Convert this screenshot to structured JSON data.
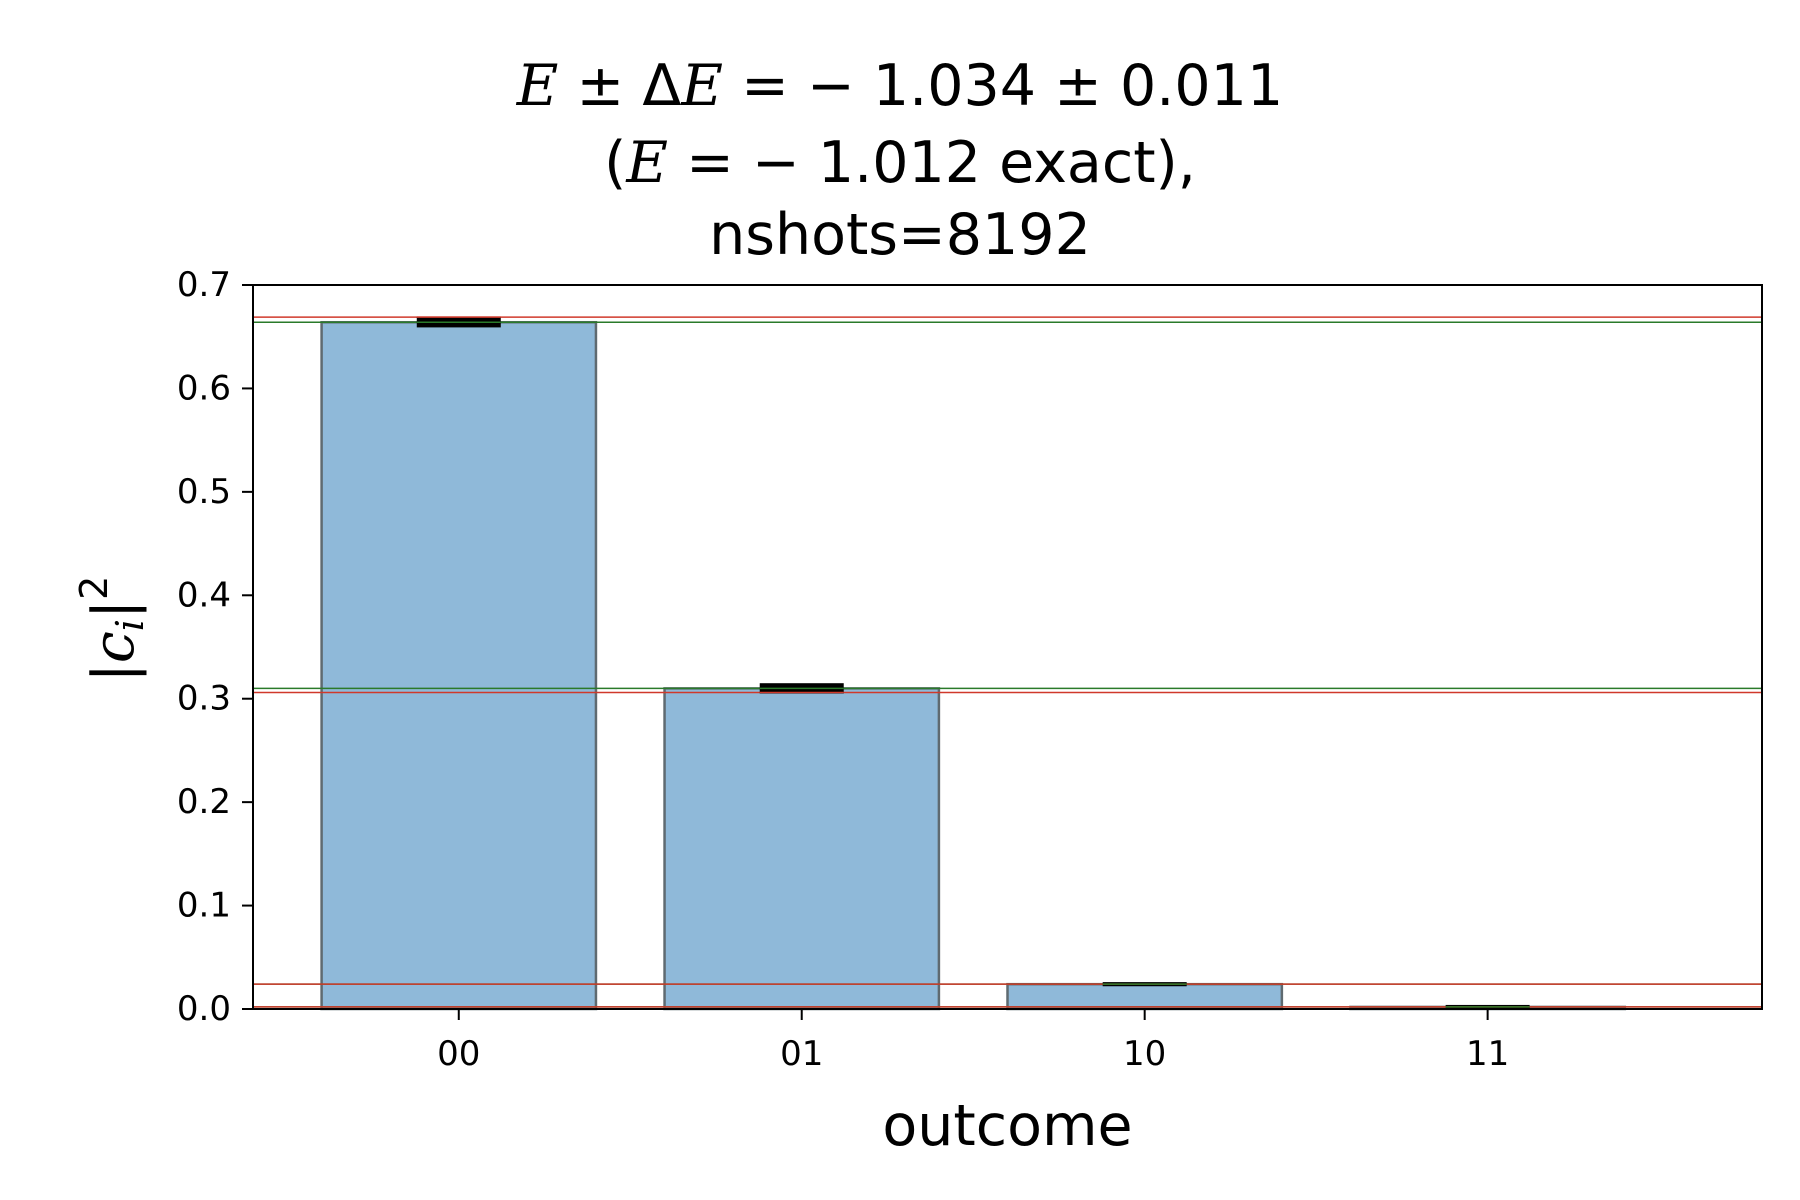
{
  "chart_data": {
    "type": "bar",
    "title_lines": [
      {
        "pre": "",
        "var": "E",
        "mid": " ± Δ",
        "var2": "E",
        "post": " = − 1.034 ± 0.011"
      },
      {
        "pre": "(",
        "var": "E",
        "post": " = − 1.012 exact),"
      },
      {
        "pre": "nshots=8192"
      }
    ],
    "xlabel": "outcome",
    "ylabel": {
      "pre": "|",
      "var": "c",
      "sub": "i",
      "post": "|",
      "sup": "2"
    },
    "categories": [
      "00",
      "01",
      "10",
      "11"
    ],
    "values": [
      0.664,
      0.31,
      0.024,
      0.002
    ],
    "errors": [
      0.005,
      0.005,
      0.002,
      0.0005
    ],
    "exact_values": [
      0.669,
      0.306,
      0.024,
      0.002
    ],
    "ylim": [
      0,
      0.7
    ],
    "yticks": [
      "0.0",
      "0.1",
      "0.2",
      "0.3",
      "0.4",
      "0.5",
      "0.6",
      "0.7"
    ],
    "grid": false,
    "colors": {
      "bar_fill": "#8fb9d9",
      "bar_edge": "#5f6a70",
      "measured_line": "#2a7a2a",
      "exact_line": "#d0392b",
      "error_bar": "#000000"
    }
  }
}
